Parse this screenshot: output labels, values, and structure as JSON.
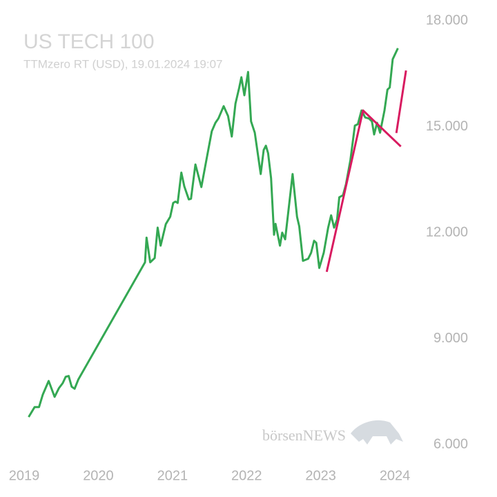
{
  "chart_data": {
    "type": "line",
    "title": "US TECH 100",
    "subtitle": "TTMzero RT (USD), 19.01.2024 19:07",
    "watermark": "börsenNEWS",
    "xlim": [
      2018.86,
      2024.26
    ],
    "xticks": [
      2019,
      2020,
      2021,
      2022,
      2023,
      2024
    ],
    "ylim": [
      6000,
      18000
    ],
    "yticks": [
      {
        "value": 6000,
        "label": "6.000"
      },
      {
        "value": 9000,
        "label": "9.000"
      },
      {
        "value": 12000,
        "label": "12.000"
      },
      {
        "value": 15000,
        "label": "15.000"
      },
      {
        "value": 18000,
        "label": "18.000"
      }
    ],
    "grid": false,
    "series": [
      {
        "color": "#34a853",
        "x": [
          2019.06,
          2019.14,
          2019.2,
          2019.25,
          2019.33,
          2019.41,
          2019.47,
          2019.52,
          2019.56,
          2019.6,
          2019.64,
          2019.68,
          2019.73,
          2020.63,
          2020.65,
          2020.7,
          2020.76,
          2020.8,
          2020.84,
          2020.91,
          2020.97,
          2021.01,
          2021.04,
          2021.07,
          2021.12,
          2021.16,
          2021.22,
          2021.25,
          2021.31,
          2021.39,
          2021.46,
          2021.53,
          2021.58,
          2021.62,
          2021.69,
          2021.75,
          2021.8,
          2021.85,
          2021.9,
          2021.93,
          2021.97,
          2022.02,
          2022.06,
          2022.11,
          2022.19,
          2022.23,
          2022.26,
          2022.29,
          2022.33,
          2022.37,
          2022.39,
          2022.45,
          2022.48,
          2022.52,
          2022.58,
          2022.62,
          2022.68,
          2022.71,
          2022.76,
          2022.83,
          2022.87,
          2022.91,
          2022.94,
          2022.98,
          2023.04,
          2023.1,
          2023.14,
          2023.18,
          2023.22,
          2023.25,
          2023.3,
          2023.34,
          2023.4,
          2023.46,
          2023.5,
          2023.55,
          2023.6,
          2023.65,
          2023.69,
          2023.72,
          2023.76,
          2023.8,
          2023.86,
          2023.9,
          2023.93,
          2023.97,
          2024.04
        ],
        "values": [
          6780,
          7060,
          7060,
          7410,
          7800,
          7350,
          7600,
          7740,
          7920,
          7940,
          7640,
          7580,
          7840,
          11160,
          11860,
          11160,
          11280,
          12140,
          11630,
          12240,
          12450,
          12840,
          12880,
          12840,
          13700,
          13310,
          12940,
          12960,
          13930,
          13290,
          14090,
          14870,
          15110,
          15230,
          15580,
          15300,
          14720,
          15650,
          16100,
          16400,
          15890,
          16550,
          15150,
          14830,
          13660,
          14340,
          14460,
          14250,
          13540,
          11940,
          12250,
          11630,
          12000,
          11810,
          12920,
          13660,
          12450,
          12180,
          11200,
          11260,
          11430,
          11770,
          11710,
          11000,
          11430,
          12140,
          12490,
          12140,
          12370,
          13000,
          13060,
          13370,
          14050,
          15030,
          15070,
          15460,
          15260,
          15230,
          15150,
          14780,
          15110,
          14830,
          15460,
          16050,
          16110,
          16910,
          17220
        ]
      },
      {
        "color": "#d81b60",
        "x": [
          2023.08,
          2023.57,
          2024.08
        ],
        "values": [
          10890,
          15460,
          14440
        ]
      },
      {
        "color": "#d81b60",
        "x": [
          2024.02,
          2024.15
        ],
        "values": [
          14820,
          16590
        ]
      }
    ]
  }
}
